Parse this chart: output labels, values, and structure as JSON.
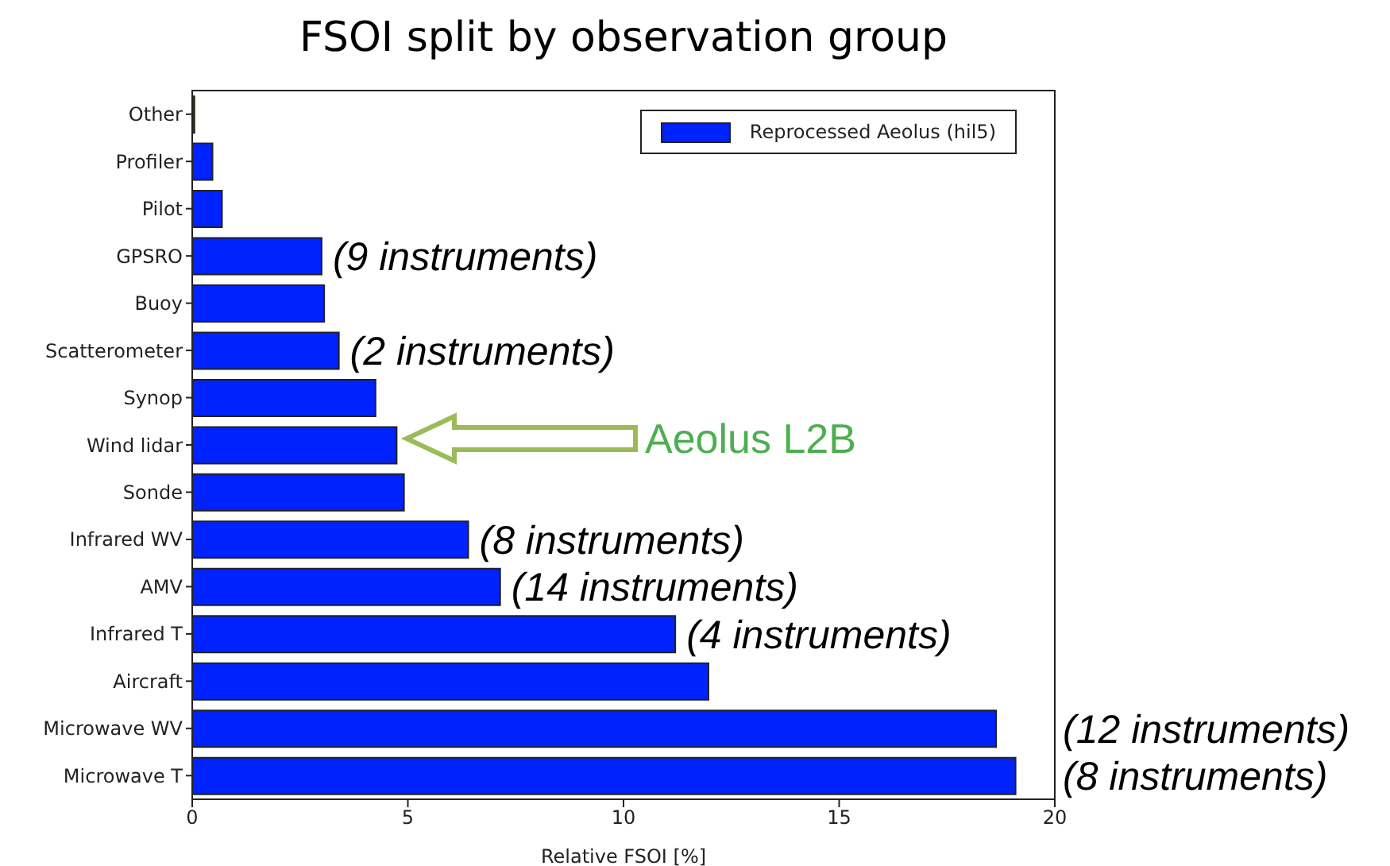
{
  "chart_data": {
    "type": "bar",
    "orientation": "horizontal",
    "title": "FSOI split by observation group",
    "xlabel": "Relative FSOI [%]",
    "categories": [
      "Other",
      "Profiler",
      "Pilot",
      "GPSRO",
      "Buoy",
      "Scatterometer",
      "Synop",
      "Wind lidar",
      "Sonde",
      "Infrared WV",
      "AMV",
      "Infrared T",
      "Aircraft",
      "Microwave WV",
      "Microwave T"
    ],
    "series": [
      {
        "name": "Reprocessed Aeolus (hil5)",
        "color": "#0022ff",
        "values": [
          0.05,
          0.47,
          0.69,
          3.0,
          3.06,
          3.4,
          4.25,
          4.74,
          4.91,
          6.4,
          7.14,
          11.2,
          11.97,
          18.64,
          19.09
        ]
      }
    ],
    "xlim": [
      0,
      20
    ],
    "xticks": [
      0,
      5,
      10,
      15,
      20
    ],
    "legend": "top right",
    "annotations": [
      {
        "text": "(9 instruments)",
        "x": 3.0,
        "y": "GPSRO"
      },
      {
        "text": "(2 instruments)",
        "x": 3.4,
        "y": "Scatterometer"
      },
      "Aeolus L2B",
      {
        "text": "(8 instruments)",
        "x": 6.4,
        "y": "Infrared WV"
      },
      {
        "text": "(14 instruments)",
        "x": 7.14,
        "y": "AMV"
      },
      {
        "text": "(4 instruments)",
        "x": 11.2,
        "y": "Infrared T"
      },
      {
        "text": "(12 instruments)",
        "x": 18.64,
        "y": "Microwave WV"
      },
      {
        "text": "(8 instruments)",
        "x": 19.09,
        "y": "Microwave T"
      }
    ]
  }
}
